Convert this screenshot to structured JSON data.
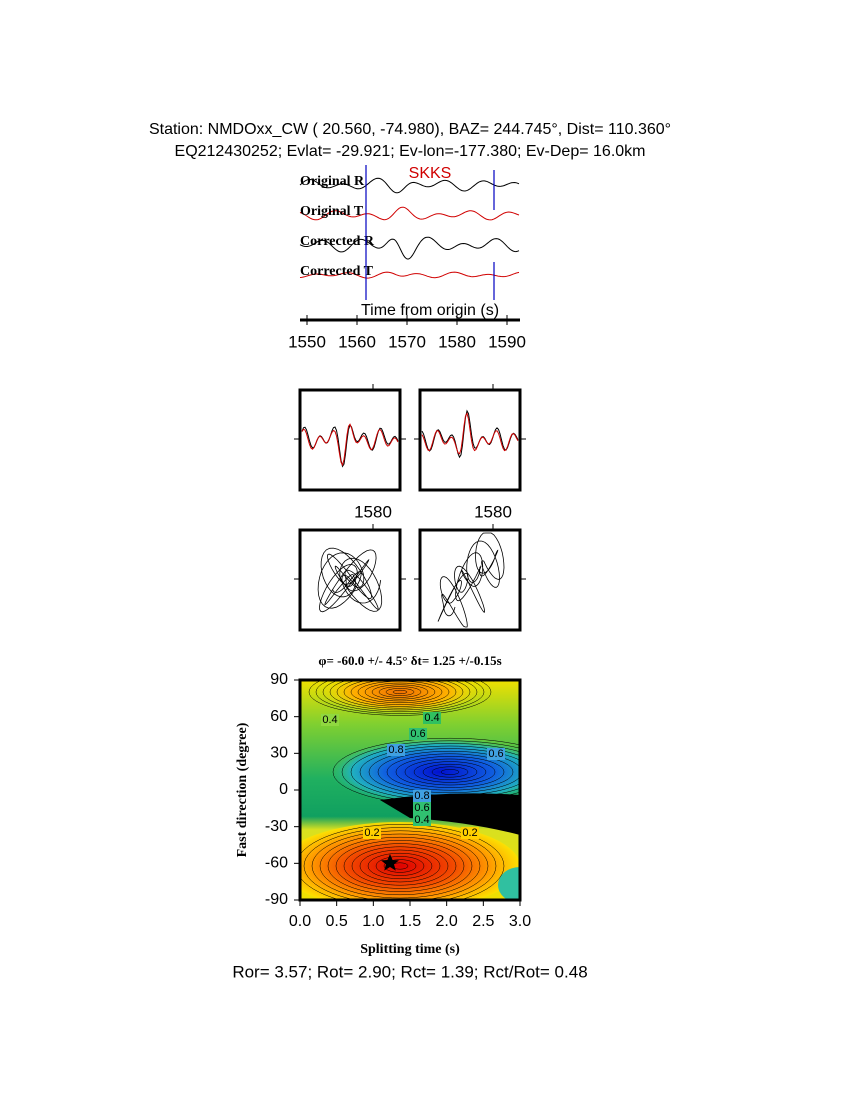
{
  "header": {
    "station": "Station: NMDOxx_CW (  20.560,  -74.980), BAZ=  244.745°, Dist=  110.360°",
    "event": "EQ212430252; Evlat= -29.921; Ev-lon=-177.380; Ev-Dep= 16.0km"
  },
  "traces": {
    "labels": [
      "Original R",
      "Original T",
      "Corrected R",
      "Corrected T"
    ],
    "phase": "SKKS",
    "x_label": "Time from origin (s)",
    "x_ticks": [
      "1550",
      "1560",
      "1570",
      "1580",
      "1590"
    ]
  },
  "particle_panels": {
    "x_ticks": [
      "1580",
      "1580"
    ]
  },
  "grid_search": {
    "title": "φ= -60.0 +/- 4.5° δt= 1.25 +/-0.15s",
    "y_label": "Fast direction (degree)",
    "x_label": "Splitting time (s)",
    "y_ticks": [
      "90",
      "60",
      "30",
      "0",
      "-30",
      "-60",
      "-90"
    ],
    "x_ticks": [
      "0.0",
      "0.5",
      "1.0",
      "1.5",
      "2.0",
      "2.5",
      "3.0"
    ],
    "contour_labels": [
      "0.4",
      "0.4",
      "0.6",
      "0.8",
      "0.6",
      "0.8",
      "0.6",
      "0.4",
      "0.2",
      "0.2"
    ]
  },
  "footer": "Ror= 3.57; Rot= 2.90; Rct= 1.39; Rct/Rot= 0.48"
}
